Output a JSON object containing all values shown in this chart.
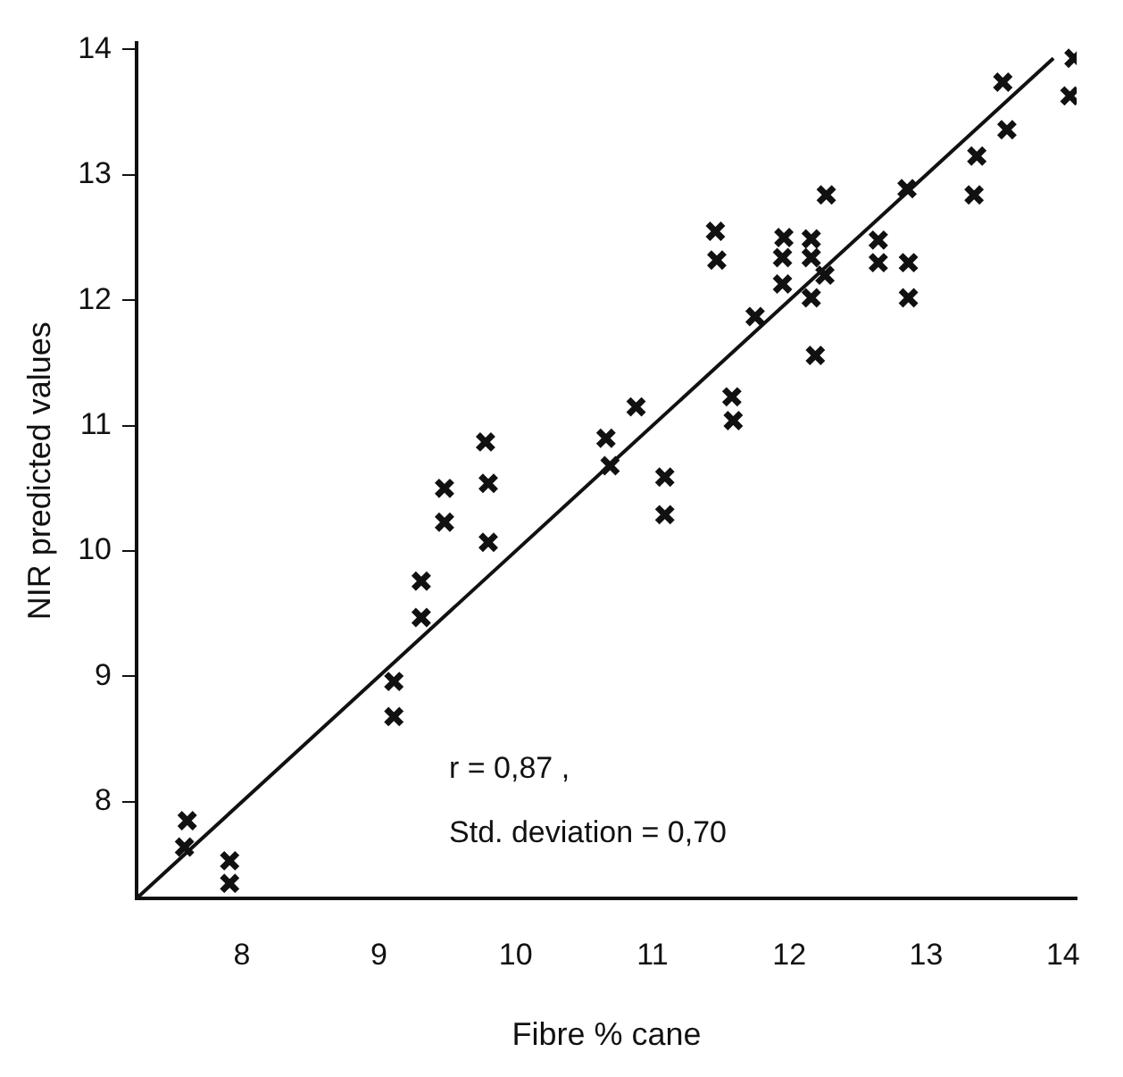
{
  "chart_data": {
    "type": "scatter",
    "xlabel": "Fibre % cane",
    "ylabel": "NIR predicted values",
    "annotations": [
      "r = 0,87 ,",
      "Std. deviation = 0,70"
    ],
    "xlim": [
      7.23,
      14.1
    ],
    "ylim": [
      7.23,
      14.05
    ],
    "xticks": [
      8,
      9,
      10,
      11,
      12,
      13,
      14
    ],
    "yticks": [
      8,
      9,
      10,
      11,
      12,
      13,
      14
    ],
    "grid": false,
    "legend": false,
    "marker": "cross",
    "series": [
      {
        "color": "#111111",
        "x": [
          14.08,
          14.05,
          13.56,
          13.59,
          13.37,
          13.35,
          12.86,
          12.27,
          12.87,
          12.87,
          12.65,
          12.65,
          12.16,
          12.16,
          12.26,
          12.16,
          12.19,
          11.96,
          11.95,
          11.95,
          11.46,
          11.47,
          11.75,
          11.58,
          11.59,
          10.88,
          10.66,
          10.69,
          11.09,
          11.09,
          9.78,
          9.8,
          9.48,
          9.48,
          9.8,
          9.31,
          9.31,
          9.11,
          9.11,
          7.6,
          7.58,
          7.91,
          7.91
        ],
        "values": [
          13.93,
          13.63,
          13.74,
          13.36,
          13.15,
          12.84,
          12.89,
          12.84,
          12.3,
          12.02,
          12.48,
          12.3,
          12.49,
          12.34,
          12.2,
          12.02,
          11.56,
          12.5,
          12.34,
          12.13,
          12.55,
          12.32,
          11.87,
          11.23,
          11.04,
          11.15,
          10.9,
          10.68,
          10.59,
          10.29,
          10.87,
          10.54,
          10.5,
          10.23,
          10.07,
          9.76,
          9.47,
          8.96,
          8.68,
          7.85,
          7.64,
          7.53,
          7.35
        ]
      },
      {
        "type": "line",
        "color": "#111111",
        "x": [
          7.23,
          13.93
        ],
        "values": [
          7.23,
          13.93
        ],
        "marker": "none",
        "line_style": "solid"
      }
    ]
  }
}
